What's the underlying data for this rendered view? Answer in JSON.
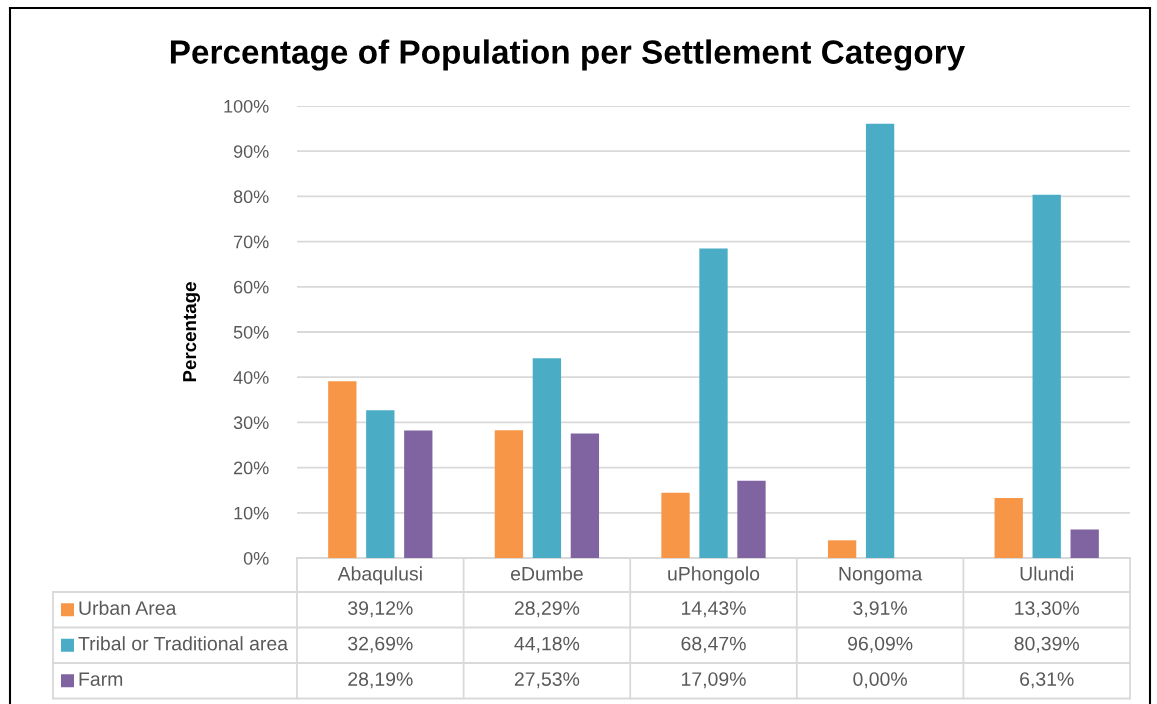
{
  "chart_data": {
    "type": "bar",
    "title": "Percentage of Population per Settlement Category",
    "ylabel": "Percentage",
    "categories": [
      "Abaqulusi",
      "eDumbe",
      "uPhongolo",
      "Nongoma",
      "Ulundi"
    ],
    "series": [
      {
        "name": "Urban Area",
        "color": "#f79646",
        "values": [
          39.12,
          28.29,
          14.43,
          3.91,
          13.3
        ],
        "value_labels": [
          "39,12%",
          "28,29%",
          "14,43%",
          "3,91%",
          "13,30%"
        ]
      },
      {
        "name": "Tribal or Traditional area",
        "color": "#4bacc6",
        "values": [
          32.69,
          44.18,
          68.47,
          96.09,
          80.39
        ],
        "value_labels": [
          "32,69%",
          "44,18%",
          "68,47%",
          "96,09%",
          "80,39%"
        ]
      },
      {
        "name": "Farm",
        "color": "#8064a2",
        "values": [
          28.19,
          27.53,
          17.09,
          0.0,
          6.31
        ],
        "value_labels": [
          "28,19%",
          "27,53%",
          "17,09%",
          "0,00%",
          "6,31%"
        ]
      }
    ],
    "ylim": [
      0,
      100
    ],
    "yticks": [
      {
        "value": 0,
        "label": "0%"
      },
      {
        "value": 10,
        "label": "10%"
      },
      {
        "value": 20,
        "label": "20%"
      },
      {
        "value": 30,
        "label": "30%"
      },
      {
        "value": 40,
        "label": "40%"
      },
      {
        "value": 50,
        "label": "50%"
      },
      {
        "value": 60,
        "label": "60%"
      },
      {
        "value": 70,
        "label": "70%"
      },
      {
        "value": 80,
        "label": "80%"
      },
      {
        "value": 90,
        "label": "90%"
      },
      {
        "value": 100,
        "label": "100%"
      }
    ],
    "grid": "y",
    "legend": "bottom"
  }
}
